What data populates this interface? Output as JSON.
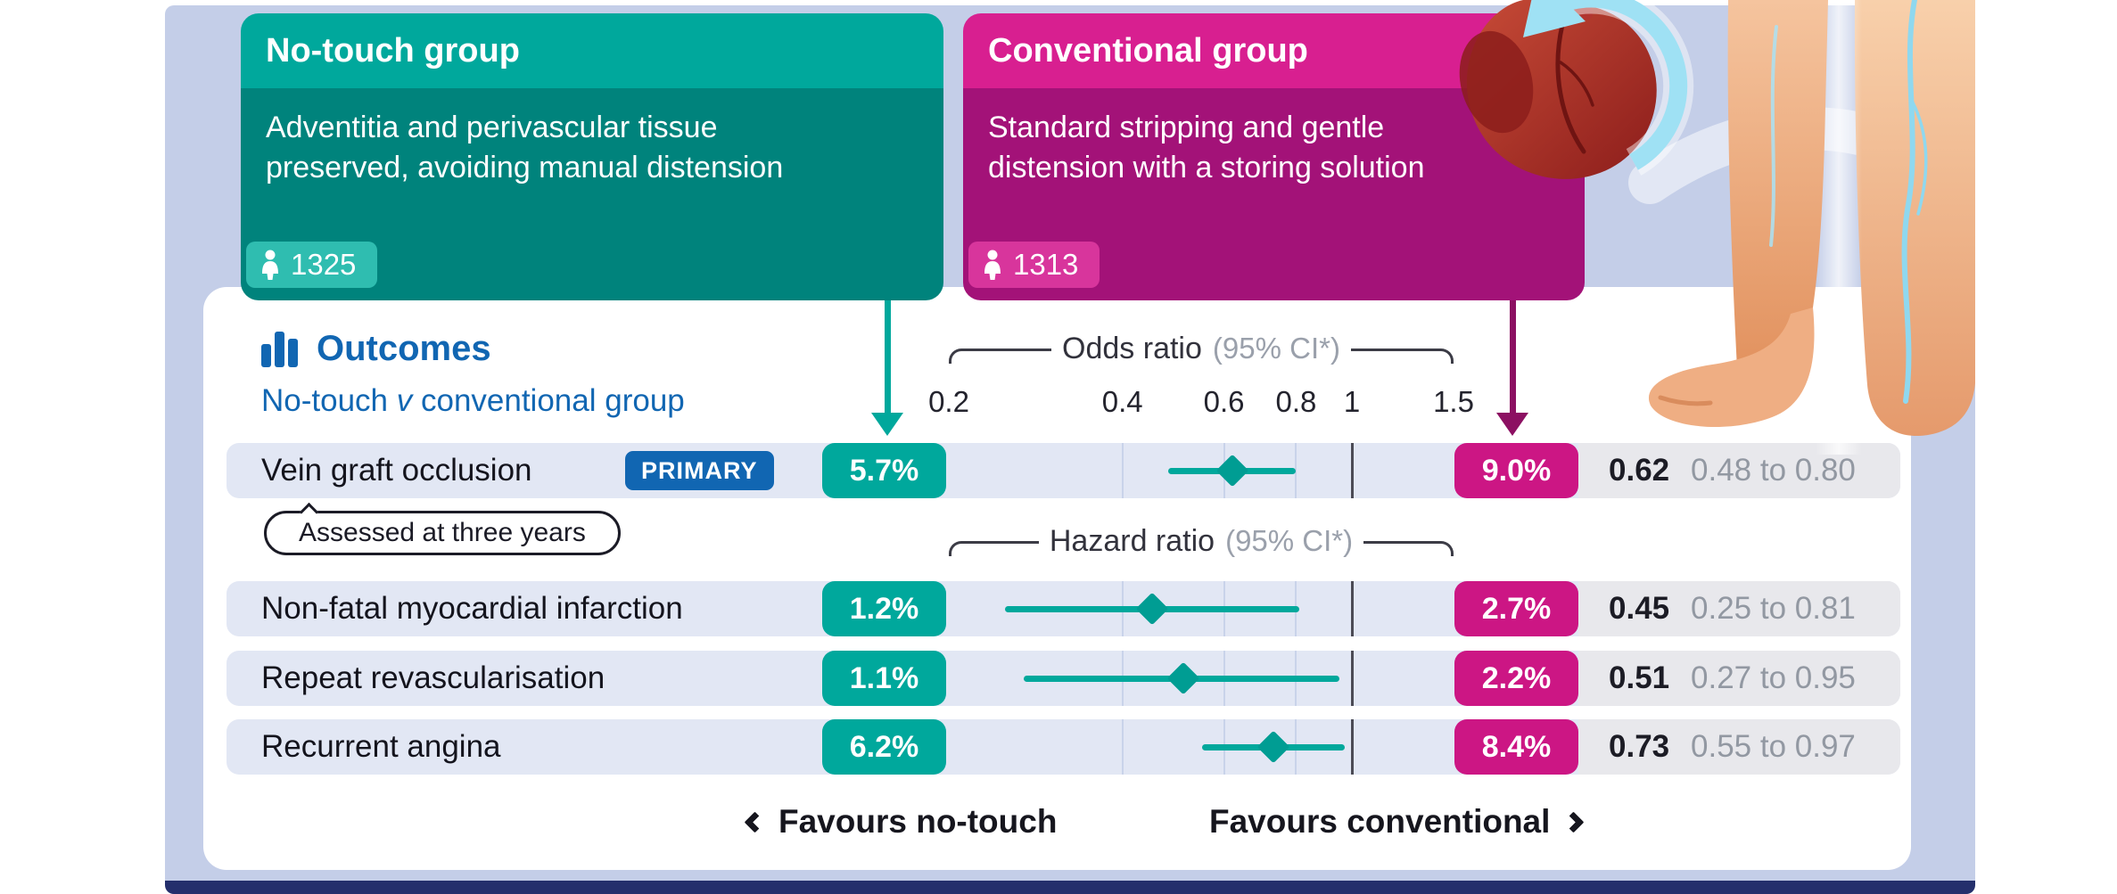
{
  "colors": {
    "teal": "#00a89c",
    "teal_dark": "#00837c",
    "teal_badge": "#2fbdb0",
    "magenta": "#d81f90",
    "magenta_dark": "#a31278",
    "magenta_badge": "#d8359c",
    "magenta_pill": "#cc1684",
    "magenta_arrow": "#8c1062",
    "accent_blue": "#1166b2",
    "panel_background": "#c4cee8",
    "row_band": "#e2e7f4",
    "numbers_band": "#e8e8ec",
    "bottom_bar": "#242f6c",
    "null_line": "#4b4b55"
  },
  "groups": {
    "no_touch": {
      "title": "No-touch group",
      "description": "Adventitia and perivascular tissue preserved, avoiding manual distension",
      "count": "1325"
    },
    "conventional": {
      "title": "Conventional group",
      "description": "Standard stripping and gentle distension with a storing solution",
      "count": "1313"
    }
  },
  "outcomes": {
    "heading": "Outcomes",
    "subheading_prefix": "No-touch ",
    "subheading_v": "v",
    "subheading_suffix": " conventional group",
    "note": "Assessed at three years",
    "favours_left": "Favours no-touch",
    "favours_right": "Favours conventional"
  },
  "chart_data": {
    "type": "forest",
    "scale": "log",
    "axis_range": [
      0.2,
      1.5
    ],
    "axis_ticks": [
      0.2,
      0.4,
      0.6,
      0.8,
      1,
      1.5
    ],
    "minor_gridlines": [
      0.4,
      0.6,
      0.8
    ],
    "null_line": 1,
    "headers": [
      {
        "label": "Odds ratio",
        "suffix": "(95% CI*)"
      },
      {
        "label": "Hazard ratio",
        "suffix": "(95% CI*)"
      }
    ],
    "rows": [
      {
        "label": "Vein graft occlusion",
        "badge": "PRIMARY",
        "no_touch": "5.7%",
        "conventional": "9.0%",
        "estimate": 0.62,
        "ci_low": 0.48,
        "ci_high": 0.8,
        "estimate_text": "0.62",
        "ci_text": "0.48 to 0.80"
      },
      {
        "label": "Non-fatal myocardial infarction",
        "no_touch": "1.2%",
        "conventional": "2.7%",
        "estimate": 0.45,
        "ci_low": 0.25,
        "ci_high": 0.81,
        "estimate_text": "0.45",
        "ci_text": "0.25 to 0.81"
      },
      {
        "label": "Repeat revascularisation",
        "no_touch": "1.1%",
        "conventional": "2.2%",
        "estimate": 0.51,
        "ci_low": 0.27,
        "ci_high": 0.95,
        "estimate_text": "0.51",
        "ci_text": "0.27 to 0.95"
      },
      {
        "label": "Recurrent angina",
        "no_touch": "6.2%",
        "conventional": "8.4%",
        "estimate": 0.73,
        "ci_low": 0.55,
        "ci_high": 0.97,
        "estimate_text": "0.73",
        "ci_text": "0.55 to 0.97"
      }
    ]
  }
}
